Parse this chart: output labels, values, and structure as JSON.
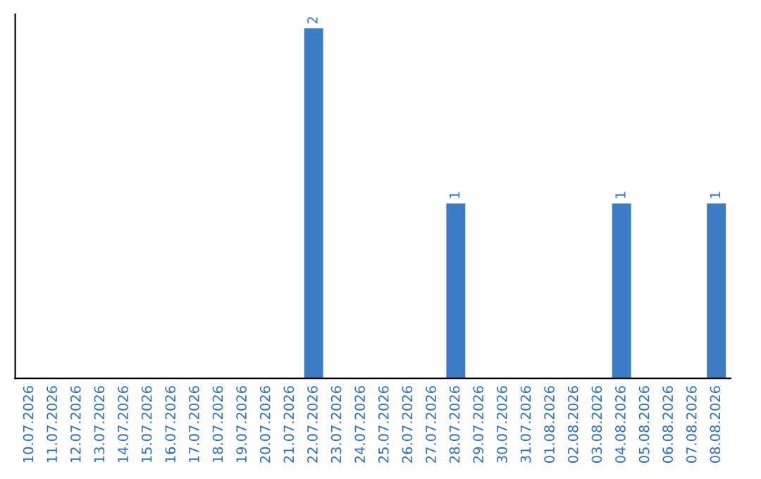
{
  "chart_data": {
    "type": "bar",
    "categories": [
      "10.07.2026",
      "11.07.2026",
      "12.07.2026",
      "13.07.2026",
      "14.07.2026",
      "15.07.2026",
      "16.07.2026",
      "17.07.2026",
      "18.07.2026",
      "19.07.2026",
      "20.07.2026",
      "21.07.2026",
      "22.07.2026",
      "23.07.2026",
      "24.07.2026",
      "25.07.2026",
      "26.07.2026",
      "27.07.2026",
      "28.07.2026",
      "29.07.2026",
      "30.07.2026",
      "31.07.2026",
      "01.08.2026",
      "02.08.2026",
      "03.08.2026",
      "04.08.2026",
      "05.08.2026",
      "06.08.2026",
      "07.08.2026",
      "08.08.2026"
    ],
    "values": [
      null,
      null,
      null,
      null,
      null,
      null,
      null,
      null,
      null,
      null,
      null,
      null,
      2,
      null,
      null,
      null,
      null,
      null,
      1,
      null,
      null,
      null,
      null,
      null,
      null,
      1,
      null,
      null,
      null,
      1
    ],
    "data_labels": true,
    "color": "#3b7dc4",
    "tick_labels": "x",
    "grid": false,
    "legend": false
  }
}
